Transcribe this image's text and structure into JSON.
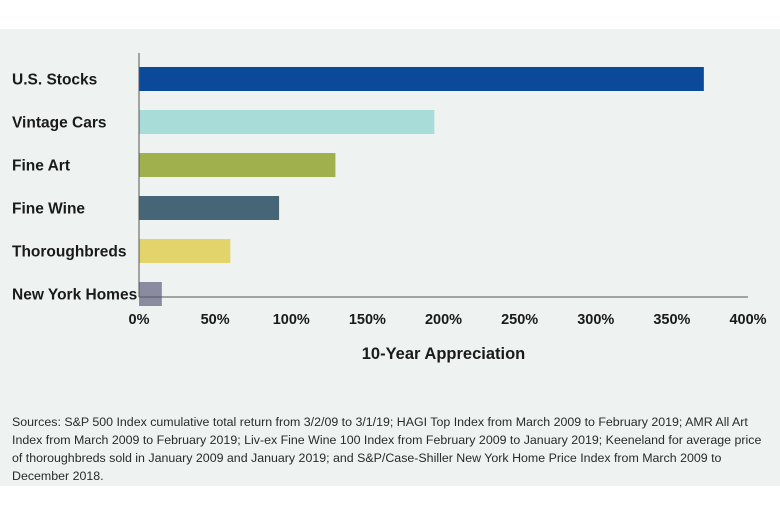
{
  "chart_data": {
    "type": "bar",
    "orientation": "horizontal",
    "categories": [
      "U.S. Stocks",
      "Vintage Cars",
      "Fine Art",
      "Fine Wine",
      "Thoroughbreds",
      "New York Homes"
    ],
    "values": [
      371,
      194,
      129,
      92,
      60,
      15
    ],
    "colors": [
      "#0b4a9a",
      "#a8dcd9",
      "#9fb04c",
      "#466577",
      "#e2d36a",
      "#8a8aa1"
    ],
    "xlabel": "10-Year Appreciation",
    "xlim": [
      0,
      400
    ],
    "ticks": [
      0,
      50,
      100,
      150,
      200,
      250,
      300,
      350,
      400
    ],
    "tick_labels": [
      "0%",
      "50%",
      "100%",
      "150%",
      "200%",
      "250%",
      "300%",
      "350%",
      "400%"
    ],
    "grid": false,
    "legend": "none"
  },
  "source_note": "Sources: S&P 500 Index cumulative total return from 3/2/09 to 3/1/19; HAGI Top Index  from March 2009 to February 2019; AMR All Art Index from March 2009 to February 2019; Liv-ex Fine Wine 100 Index from February 2009 to January 2019; Keeneland for average price of thoroughbreds sold in January 2009 and January 2019; and S&P/Case-Shiller New York Home Price Index from March 2009 to December 2018."
}
